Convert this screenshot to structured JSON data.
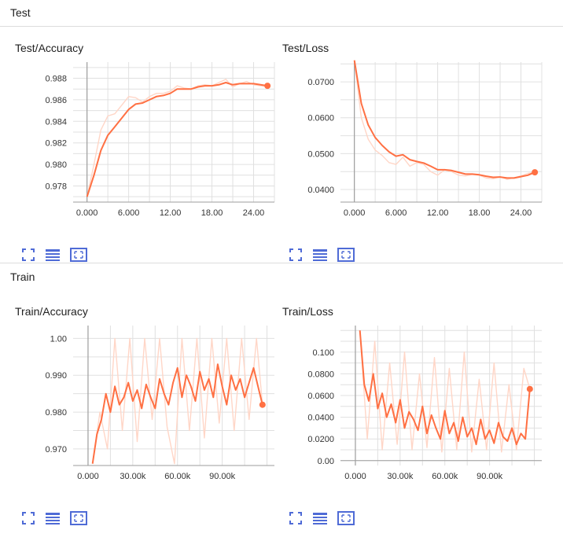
{
  "sections": [
    {
      "title": "Test"
    },
    {
      "title": "Train"
    }
  ],
  "palette": {
    "line": "#ff7043",
    "line_faint": "#ffd6c7",
    "grid": "#e0e0e0",
    "axis": "#9e9e9e",
    "button": "#4f6bd6"
  },
  "icons": [
    "expand-icon",
    "data-table-icon",
    "fit-domain-icon"
  ],
  "chart_data": [
    {
      "type": "line",
      "title": "Test/Accuracy",
      "xlim": [
        -2,
        27
      ],
      "ylim": [
        0.9765,
        0.9895
      ],
      "xticks": [
        0,
        6,
        12,
        18,
        24
      ],
      "xtick_labels": [
        "0.000",
        "6.000",
        "12.00",
        "18.00",
        "24.00"
      ],
      "yticks": [
        0.978,
        0.98,
        0.982,
        0.984,
        0.986,
        0.988
      ],
      "ytick_labels": [
        "0.978",
        "0.980",
        "0.982",
        "0.984",
        "0.986",
        "0.988"
      ],
      "series": [
        {
          "role": "raw",
          "x": [
            0,
            1,
            2,
            3,
            4,
            5,
            6,
            7,
            8,
            9,
            10,
            11,
            12,
            13,
            14,
            15,
            16,
            17,
            18,
            19,
            20,
            21,
            22,
            23,
            24,
            25,
            26
          ],
          "y": [
            0.977,
            0.98,
            0.9832,
            0.9845,
            0.9847,
            0.9855,
            0.9863,
            0.9862,
            0.9858,
            0.9863,
            0.9866,
            0.9866,
            0.9868,
            0.9873,
            0.9871,
            0.987,
            0.9873,
            0.9874,
            0.9873,
            0.9876,
            0.9879,
            0.9872,
            0.9875,
            0.9877,
            0.9874,
            0.9873,
            0.9872
          ]
        },
        {
          "role": "smoothed",
          "x": [
            0,
            1,
            2,
            3,
            4,
            5,
            6,
            7,
            8,
            9,
            10,
            11,
            12,
            13,
            14,
            15,
            16,
            17,
            18,
            19,
            20,
            21,
            22,
            23,
            24,
            25,
            26
          ],
          "y": [
            0.977,
            0.979,
            0.9813,
            0.9827,
            0.9835,
            0.9843,
            0.9851,
            0.9856,
            0.9857,
            0.986,
            0.9863,
            0.9864,
            0.9866,
            0.987,
            0.987,
            0.987,
            0.9872,
            0.9873,
            0.9873,
            0.9874,
            0.9876,
            0.9874,
            0.9875,
            0.9875,
            0.9875,
            0.9874,
            0.9873
          ]
        }
      ]
    },
    {
      "type": "line",
      "title": "Test/Loss",
      "xlim": [
        -2,
        27
      ],
      "ylim": [
        0.0365,
        0.0755
      ],
      "xticks": [
        0,
        6,
        12,
        18,
        24
      ],
      "xtick_labels": [
        "0.000",
        "6.000",
        "12.00",
        "18.00",
        "24.00"
      ],
      "yticks": [
        0.04,
        0.05,
        0.06,
        0.07
      ],
      "ytick_labels": [
        "0.0400",
        "0.0500",
        "0.0600",
        "0.0700"
      ],
      "series": [
        {
          "role": "raw",
          "x": [
            0,
            1,
            2,
            3,
            4,
            5,
            6,
            7,
            8,
            9,
            10,
            11,
            12,
            13,
            14,
            15,
            16,
            17,
            18,
            19,
            20,
            21,
            22,
            23,
            24,
            25,
            26
          ],
          "y": [
            0.076,
            0.06,
            0.054,
            0.051,
            0.0495,
            0.0475,
            0.047,
            0.049,
            0.0465,
            0.0475,
            0.047,
            0.045,
            0.044,
            0.0455,
            0.045,
            0.044,
            0.0438,
            0.0442,
            0.044,
            0.0432,
            0.043,
            0.0436,
            0.0428,
            0.0433,
            0.0438,
            0.0445,
            0.0448
          ]
        },
        {
          "role": "smoothed",
          "x": [
            0,
            1,
            2,
            3,
            4,
            5,
            6,
            7,
            8,
            9,
            10,
            11,
            12,
            13,
            14,
            15,
            16,
            17,
            18,
            19,
            20,
            21,
            22,
            23,
            24,
            25,
            26
          ],
          "y": [
            0.076,
            0.064,
            0.058,
            0.0545,
            0.0523,
            0.0505,
            0.0493,
            0.0497,
            0.0483,
            0.0478,
            0.0474,
            0.0465,
            0.0455,
            0.0455,
            0.0453,
            0.0448,
            0.0443,
            0.0443,
            0.0441,
            0.0437,
            0.0434,
            0.0435,
            0.0432,
            0.0432,
            0.0436,
            0.044,
            0.0448
          ]
        }
      ]
    },
    {
      "type": "line",
      "title": "Train/Accuracy",
      "xlim": [
        -10000,
        125000
      ],
      "ylim": [
        0.9655,
        1.0035
      ],
      "xticks": [
        0,
        30000,
        60000,
        90000
      ],
      "xtick_labels": [
        "0.000",
        "30.00k",
        "60.00k",
        "90.00k"
      ],
      "yticks": [
        0.97,
        0.98,
        0.99,
        1.0
      ],
      "ytick_labels": [
        "0.970",
        "0.980",
        "0.990",
        "1.00"
      ],
      "series": [
        {
          "role": "raw",
          "x": [
            3000,
            8000,
            13000,
            18000,
            23000,
            28000,
            33000,
            38000,
            43000,
            48000,
            53000,
            58000,
            63000,
            68000,
            73000,
            78000,
            83000,
            88000,
            93000,
            98000,
            103000,
            108000,
            113000,
            117000
          ],
          "y": [
            0.966,
            0.98,
            0.97,
            1.0,
            0.975,
            1.0,
            0.972,
            1.0,
            0.978,
            1.0,
            0.976,
            0.966,
            1.0,
            0.975,
            1.0,
            0.973,
            1.0,
            0.977,
            1.0,
            0.975,
            1.0,
            0.978,
            1.0,
            0.982
          ]
        },
        {
          "role": "smoothed",
          "x": [
            3000,
            6000,
            9000,
            12000,
            15000,
            18000,
            21000,
            24000,
            27000,
            30000,
            33000,
            36000,
            39000,
            42000,
            45000,
            48000,
            51000,
            54000,
            57000,
            60000,
            63000,
            66000,
            69000,
            72000,
            75000,
            78000,
            81000,
            84000,
            87000,
            90000,
            93000,
            96000,
            99000,
            102000,
            105000,
            108000,
            111000,
            114000,
            117000
          ],
          "y": [
            0.966,
            0.974,
            0.978,
            0.985,
            0.98,
            0.987,
            0.982,
            0.984,
            0.988,
            0.983,
            0.986,
            0.981,
            0.9875,
            0.984,
            0.981,
            0.989,
            0.985,
            0.982,
            0.988,
            0.992,
            0.984,
            0.99,
            0.987,
            0.983,
            0.991,
            0.986,
            0.989,
            0.984,
            0.993,
            0.987,
            0.982,
            0.99,
            0.986,
            0.989,
            0.984,
            0.988,
            0.992,
            0.987,
            0.982
          ]
        }
      ]
    },
    {
      "type": "line",
      "title": "Train/Loss",
      "xlim": [
        -10000,
        125000
      ],
      "ylim": [
        -0.0045,
        0.1245
      ],
      "xticks": [
        0,
        30000,
        60000,
        90000
      ],
      "xtick_labels": [
        "0.000",
        "30.00k",
        "60.00k",
        "90.00k"
      ],
      "yticks": [
        0.0,
        0.02,
        0.04,
        0.06,
        0.08,
        0.1
      ],
      "ytick_labels": [
        "0.00",
        "0.0200",
        "0.0400",
        "0.0600",
        "0.0800",
        "0.100"
      ],
      "series": [
        {
          "role": "raw",
          "x": [
            3000,
            8000,
            13000,
            18000,
            23000,
            28000,
            33000,
            38000,
            43000,
            48000,
            53000,
            58000,
            63000,
            68000,
            73000,
            78000,
            83000,
            88000,
            93000,
            98000,
            103000,
            108000,
            113000,
            117000
          ],
          "y": [
            0.12,
            0.02,
            0.11,
            0.01,
            0.09,
            0.015,
            0.1,
            0.01,
            0.08,
            0.012,
            0.095,
            0.008,
            0.085,
            0.01,
            0.1,
            0.008,
            0.075,
            0.01,
            0.09,
            0.008,
            0.07,
            0.01,
            0.085,
            0.066
          ]
        },
        {
          "role": "smoothed",
          "x": [
            3000,
            6000,
            9000,
            12000,
            15000,
            18000,
            21000,
            24000,
            27000,
            30000,
            33000,
            36000,
            39000,
            42000,
            45000,
            48000,
            51000,
            54000,
            57000,
            60000,
            63000,
            66000,
            69000,
            72000,
            75000,
            78000,
            81000,
            84000,
            87000,
            90000,
            93000,
            96000,
            99000,
            102000,
            105000,
            108000,
            111000,
            114000,
            117000
          ],
          "y": [
            0.12,
            0.07,
            0.055,
            0.08,
            0.048,
            0.062,
            0.04,
            0.052,
            0.035,
            0.056,
            0.03,
            0.045,
            0.038,
            0.028,
            0.05,
            0.025,
            0.042,
            0.03,
            0.02,
            0.046,
            0.025,
            0.035,
            0.018,
            0.04,
            0.022,
            0.03,
            0.015,
            0.038,
            0.02,
            0.028,
            0.016,
            0.035,
            0.022,
            0.018,
            0.03,
            0.015,
            0.025,
            0.02,
            0.066
          ]
        }
      ]
    }
  ]
}
